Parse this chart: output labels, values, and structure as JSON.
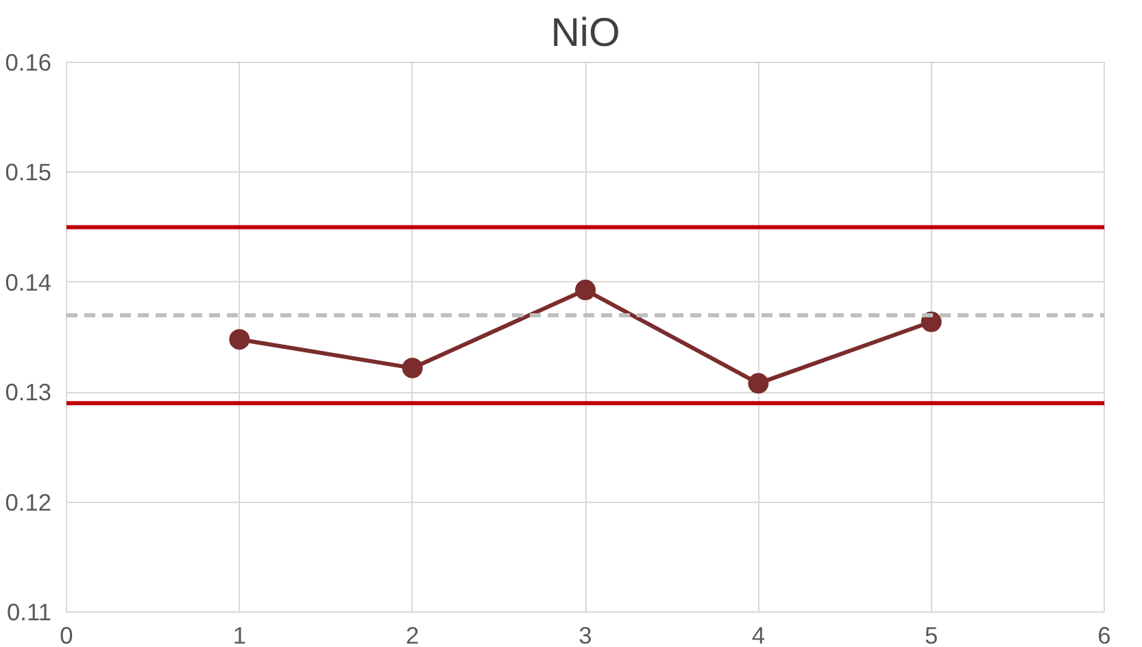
{
  "chart_data": {
    "type": "line",
    "title": "NiO",
    "x": [
      1,
      2,
      3,
      4,
      5
    ],
    "series": [
      {
        "color": "#7b2c2c",
        "values": [
          0.1348,
          0.1322,
          0.1393,
          0.1308,
          0.1364
        ]
      }
    ],
    "xlim": [
      0,
      6
    ],
    "xticks": [
      0,
      1,
      2,
      3,
      4,
      5,
      6
    ],
    "ylim": [
      0.11,
      0.16
    ],
    "yticks": [
      {
        "value": 0.11,
        "label": "0.11"
      },
      {
        "value": 0.12,
        "label": "0.12"
      },
      {
        "value": 0.13,
        "label": "0.13"
      },
      {
        "value": 0.14,
        "label": "0.14"
      },
      {
        "value": 0.15,
        "label": "0.15"
      },
      {
        "value": 0.16,
        "label": "0.16"
      }
    ],
    "ref_lines": [
      {
        "axis": "y",
        "value": 0.145,
        "color": "#c00000",
        "line_style": "solid"
      },
      {
        "axis": "y",
        "value": 0.129,
        "color": "#c00000",
        "line_style": "solid"
      },
      {
        "axis": "y",
        "value": 0.137,
        "color": "#bfbfbf",
        "line_style": "dashed"
      }
    ],
    "grid": true,
    "marker": "circle",
    "line_style": "solid"
  }
}
